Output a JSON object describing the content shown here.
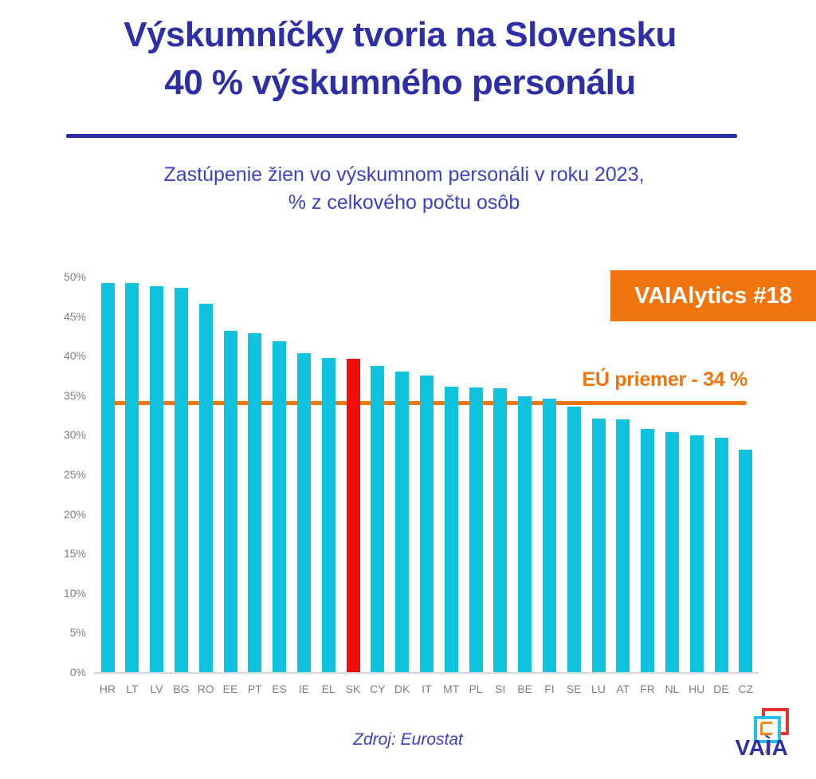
{
  "title": {
    "line1": "Výskumníčky tvoria na Slovensku",
    "line2": "40 % výskumného personálu"
  },
  "subtitle": {
    "line1": "Zastúpenie žien vo výskumnom personáli v roku 2023,",
    "line2": "% z celkového počtu osôb"
  },
  "badge": {
    "label": "VAIAlytics #18"
  },
  "colors": {
    "title_navy": "#2D2FA6",
    "subtitle_blue": "#3B41C6",
    "accent_orange": "#F1740E",
    "bar_cyan": "#0FC3DE",
    "highlight_red": "#F20D0D",
    "axis_gray": "#7F7F7F"
  },
  "chart_data": {
    "type": "bar",
    "title": "Zastúpenie žien vo výskumnom personáli v roku 2023, % z celkového počtu osôb",
    "xlabel": "",
    "ylabel": "",
    "ylim": [
      0,
      50
    ],
    "ytick_step": 5,
    "ytick_suffix": "%",
    "grid": false,
    "categories": [
      "HR",
      "LT",
      "LV",
      "BG",
      "RO",
      "EE",
      "PT",
      "ES",
      "IE",
      "EL",
      "SK",
      "CY",
      "DK",
      "IT",
      "MT",
      "PL",
      "SI",
      "BE",
      "FI",
      "SE",
      "LU",
      "AT",
      "FR",
      "NL",
      "HU",
      "DE",
      "CZ"
    ],
    "values": [
      49.2,
      49.2,
      48.8,
      48.6,
      46.6,
      43.1,
      42.8,
      41.8,
      40.3,
      39.7,
      39.6,
      38.7,
      38.0,
      37.5,
      36.1,
      36.0,
      35.9,
      34.9,
      34.6,
      33.6,
      32.1,
      32.0,
      30.7,
      30.3,
      29.9,
      29.6,
      28.1
    ],
    "bar_color": "#0FC3DE",
    "highlight_category": "SK",
    "highlight_color": "#F20D0D",
    "eu_average": {
      "value": 34,
      "label": "EÚ priemer - 34 %",
      "color": "#F1740E"
    }
  },
  "source": {
    "label": "Zdroj: Eurostat"
  },
  "logo": {
    "wordmark": "VAÌA"
  }
}
